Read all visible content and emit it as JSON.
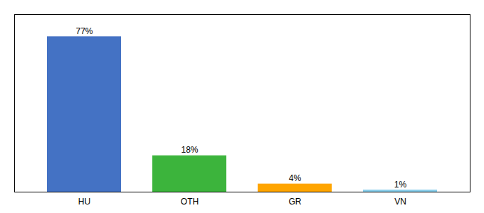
{
  "chart_data": {
    "type": "bar",
    "categories": [
      "HU",
      "OTH",
      "GR",
      "VN"
    ],
    "values": [
      77,
      18,
      4,
      1
    ],
    "value_labels": [
      "77%",
      "18%",
      "4%",
      "1%"
    ],
    "colors": [
      "#4472C4",
      "#3CB43C",
      "#FFA500",
      "#87CEEB"
    ],
    "ylim": [
      0,
      88
    ],
    "data_labels": true,
    "tick_labels": "x",
    "grid": false
  }
}
